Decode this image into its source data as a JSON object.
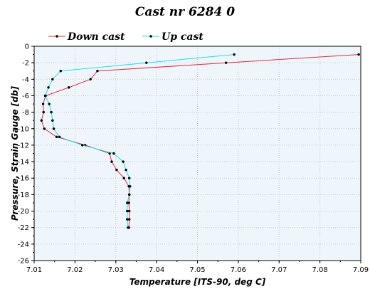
{
  "chart_data": {
    "type": "line",
    "title": "Cast nr 6284 0",
    "xlabel": "Temperature [ITS-90, deg C]",
    "ylabel": "Pressure, Strain Gauge [db]",
    "xlim": [
      7.01,
      7.09
    ],
    "ylim": [
      -26,
      0
    ],
    "x_ticks": [
      7.01,
      7.02,
      7.03,
      7.04,
      7.05,
      7.06,
      7.07,
      7.08,
      7.09
    ],
    "y_ticks": [
      0,
      -2,
      -4,
      -6,
      -8,
      -10,
      -12,
      -14,
      -16,
      -18,
      -20,
      -22,
      -24,
      -26
    ],
    "grid": true,
    "legend_position": "top-left",
    "series": [
      {
        "name": "Down cast",
        "color": "#e8283c",
        "points": [
          [
            7.0895,
            -1
          ],
          [
            7.057,
            -2
          ],
          [
            7.0255,
            -3
          ],
          [
            7.0238,
            -4
          ],
          [
            7.0185,
            -5
          ],
          [
            7.0128,
            -6
          ],
          [
            7.0122,
            -7
          ],
          [
            7.0123,
            -8
          ],
          [
            7.0118,
            -9
          ],
          [
            7.0125,
            -10
          ],
          [
            7.0155,
            -11
          ],
          [
            7.0225,
            -12
          ],
          [
            7.0285,
            -13
          ],
          [
            7.029,
            -14
          ],
          [
            7.0302,
            -15
          ],
          [
            7.032,
            -16
          ],
          [
            7.0332,
            -17
          ],
          [
            7.0333,
            -18
          ],
          [
            7.0332,
            -19
          ],
          [
            7.0333,
            -20
          ],
          [
            7.0333,
            -21
          ],
          [
            7.0332,
            -22
          ]
        ]
      },
      {
        "name": "Up cast",
        "color": "#1ee0e8",
        "points": [
          [
            7.059,
            -1
          ],
          [
            7.0375,
            -2
          ],
          [
            7.0165,
            -3
          ],
          [
            7.0145,
            -4
          ],
          [
            7.0135,
            -5
          ],
          [
            7.0127,
            -6
          ],
          [
            7.0137,
            -7
          ],
          [
            7.0142,
            -8
          ],
          [
            7.0145,
            -9
          ],
          [
            7.0148,
            -10
          ],
          [
            7.0162,
            -11
          ],
          [
            7.0218,
            -12
          ],
          [
            7.0295,
            -13
          ],
          [
            7.0318,
            -14
          ],
          [
            7.0325,
            -15
          ],
          [
            7.0333,
            -16
          ],
          [
            7.0335,
            -17
          ],
          [
            7.0333,
            -18
          ],
          [
            7.0328,
            -19
          ],
          [
            7.0328,
            -20
          ],
          [
            7.0328,
            -21
          ],
          [
            7.033,
            -22
          ]
        ]
      }
    ]
  }
}
